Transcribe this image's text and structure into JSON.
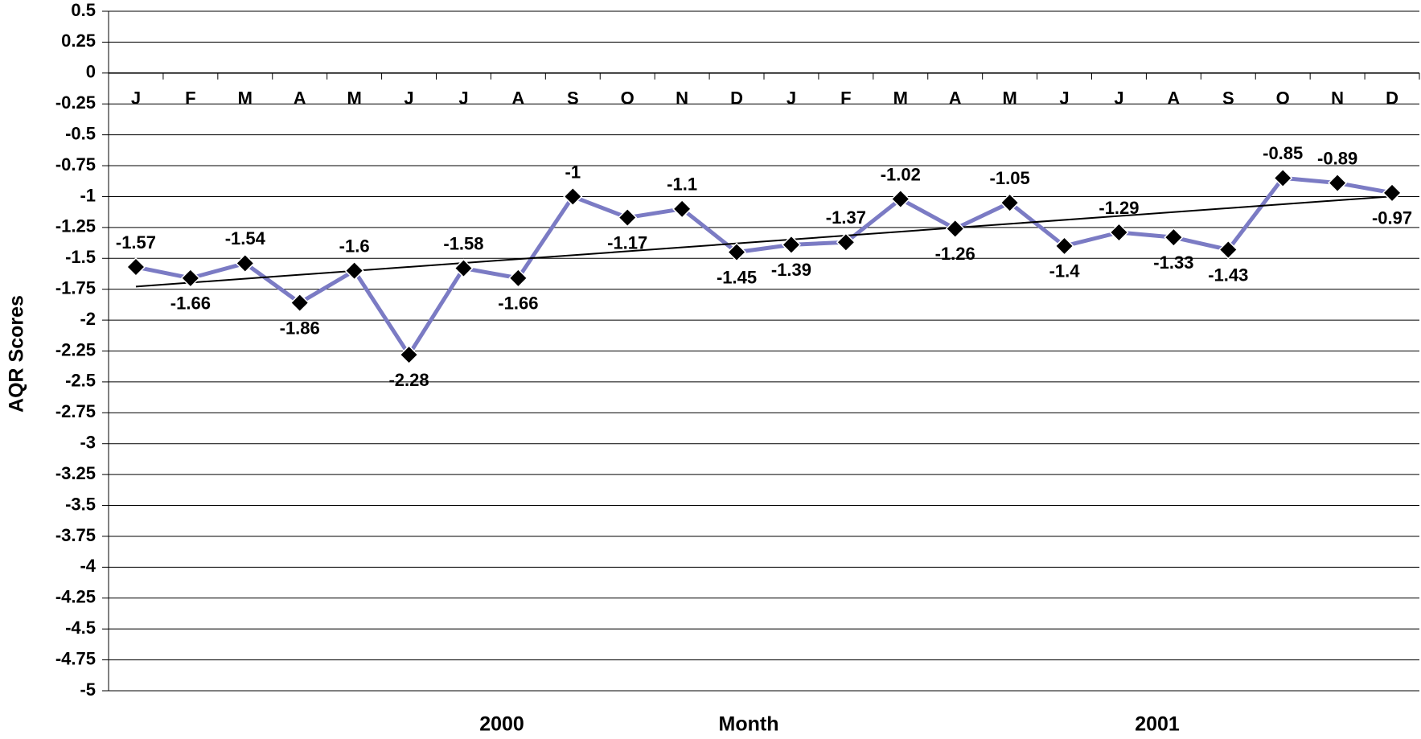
{
  "chart_data": {
    "type": "line",
    "ylabel": "AQR Scores",
    "xlabel": "Month",
    "x_groups": [
      "2000",
      "2001"
    ],
    "categories": [
      "J",
      "F",
      "M",
      "A",
      "M",
      "J",
      "J",
      "A",
      "S",
      "O",
      "N",
      "D",
      "J",
      "F",
      "M",
      "A",
      "M",
      "J",
      "J",
      "A",
      "S",
      "O",
      "N",
      "D"
    ],
    "series": [
      {
        "name": "AQR Scores",
        "color": "#7b7bc4",
        "marker_color": "#000000",
        "values": [
          -1.57,
          -1.66,
          -1.54,
          -1.86,
          -1.6,
          -2.28,
          -1.58,
          -1.66,
          -1,
          -1.17,
          -1.1,
          -1.45,
          -1.39,
          -1.37,
          -1.02,
          -1.26,
          -1.05,
          -1.4,
          -1.29,
          -1.33,
          -1.43,
          -0.85,
          -0.89,
          -0.97
        ]
      }
    ],
    "trendline": true,
    "trendline_color": "#000000",
    "ylim": [
      -5,
      0.5
    ],
    "yticks": [
      0.5,
      0.25,
      0,
      -0.25,
      -0.5,
      -0.75,
      -1,
      -1.25,
      -1.5,
      -1.75,
      -2,
      -2.25,
      -2.5,
      -2.75,
      -3,
      -3.25,
      -3.5,
      -3.75,
      -4,
      -4.25,
      -4.5,
      -4.75,
      -5
    ],
    "grid": true
  }
}
